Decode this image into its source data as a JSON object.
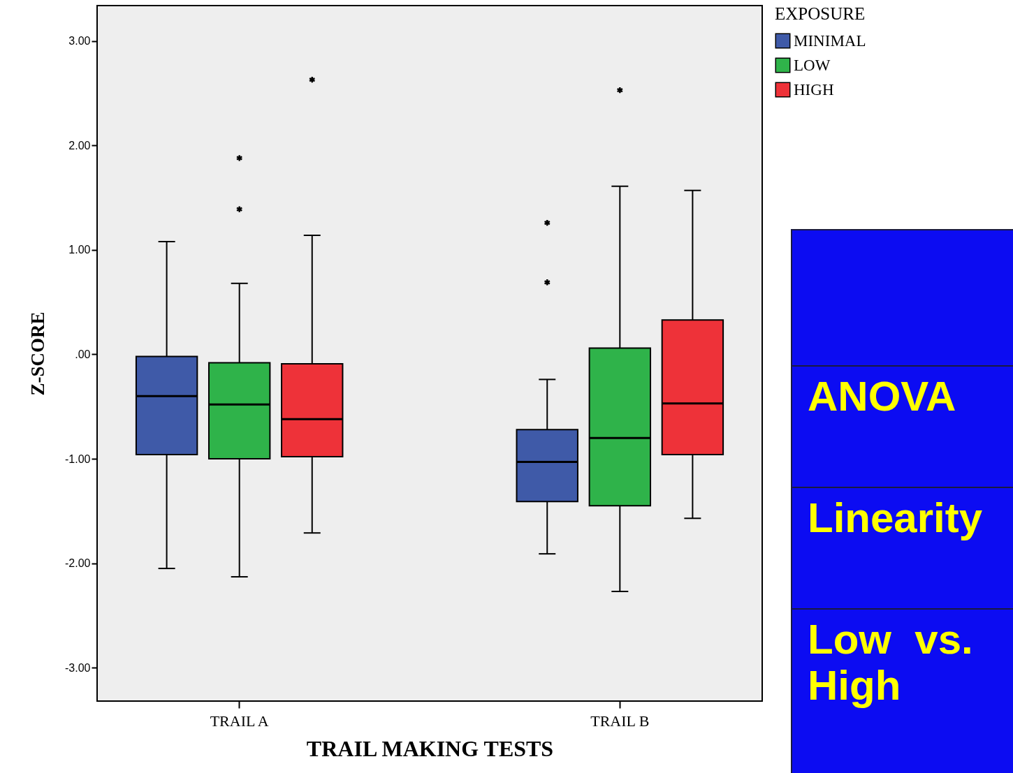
{
  "chart_data": [
    {
      "type": "box",
      "xlabel": "TRAIL MAKING TESTS",
      "ylabel": "Z-SCORE",
      "legend_title": "EXPOSURE",
      "legend": "top right",
      "categories": [
        "TRAIL A",
        "TRAIL B"
      ],
      "ylim": [
        -3.32,
        3.34
      ],
      "yticks": [
        {
          "value": 3,
          "label": "3.00"
        },
        {
          "value": 2,
          "label": "2.00"
        },
        {
          "value": 1,
          "label": "1.00"
        },
        {
          "value": 0,
          "label": ".00"
        },
        {
          "value": -1,
          "label": "-1.00"
        },
        {
          "value": -2,
          "label": "-2.00"
        },
        {
          "value": -3,
          "label": "-3.00"
        }
      ],
      "series": [
        {
          "name": "MINIMAL",
          "color": "#3f5aa8",
          "boxes": [
            {
              "low": -2.05,
              "q1": -0.96,
              "median": -0.4,
              "q3": -0.02,
              "high": 1.08
            },
            {
              "low": -1.91,
              "q1": -1.41,
              "median": -1.03,
              "q3": -0.72,
              "high": -0.24,
              "outliers": [
                1.26,
                0.69
              ]
            }
          ]
        },
        {
          "name": "LOW",
          "color": "#2fb34a",
          "boxes": [
            {
              "low": -2.13,
              "q1": -1.0,
              "median": -0.48,
              "q3": -0.08,
              "high": 0.68,
              "outliers": [
                1.88,
                1.39
              ]
            },
            {
              "low": -2.27,
              "q1": -1.45,
              "median": -0.8,
              "q3": 0.06,
              "high": 1.61,
              "outliers": [
                2.53
              ]
            }
          ]
        },
        {
          "name": "HIGH",
          "color": "#ee3239",
          "boxes": [
            {
              "low": -1.71,
              "q1": -0.98,
              "median": -0.62,
              "q3": -0.09,
              "high": 1.14,
              "outliers": [
                2.63
              ]
            },
            {
              "low": -1.57,
              "q1": -0.96,
              "median": -0.47,
              "q3": 0.33,
              "high": 1.57
            }
          ]
        }
      ]
    },
    {
      "type": "other",
      "annotations": [
        "ANOVA",
        "Linearity",
        "Low  vs. High"
      ]
    }
  ]
}
